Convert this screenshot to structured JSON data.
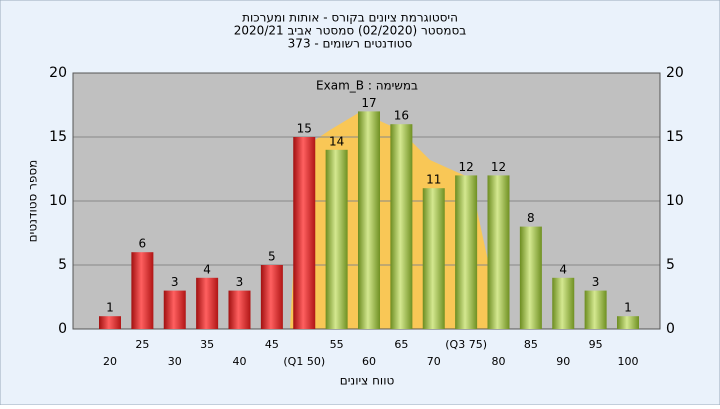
{
  "chart_data": {
    "type": "bar",
    "title": [
      "היסטוגרמת ציונים בקורס - אותות ומערכות",
      "בסמסטר  (02/2020)  סמסטר אביב 2020/21",
      "סטודנטים רשומים - 373"
    ],
    "subtitle": "Exam_B : במשימה",
    "x_label": "טווח ציונים",
    "y_label": "מספר סטודנטים",
    "categories": [
      "20",
      "25",
      "30",
      "35",
      "40",
      "45",
      "(Q1 50)",
      "55",
      "60",
      "65",
      "70",
      "(Q3 75)",
      "80",
      "85",
      "90",
      "95",
      "100"
    ],
    "values": [
      1,
      6,
      3,
      4,
      3,
      5,
      15,
      14,
      17,
      16,
      11,
      12,
      12,
      8,
      4,
      3,
      1
    ],
    "colors": [
      "#e02020",
      "#e02020",
      "#e02020",
      "#e02020",
      "#e02020",
      "#e02020",
      "#e02020",
      "#8cb040",
      "#8cb040",
      "#8cb040",
      "#8cb040",
      "#8cb040",
      "#8cb040",
      "#8cb040",
      "#8cb040",
      "#8cb040",
      "#8cb040"
    ],
    "ylim": [
      0,
      20
    ],
    "yticks": [
      0,
      5,
      10,
      15,
      20
    ],
    "grid": true
  }
}
